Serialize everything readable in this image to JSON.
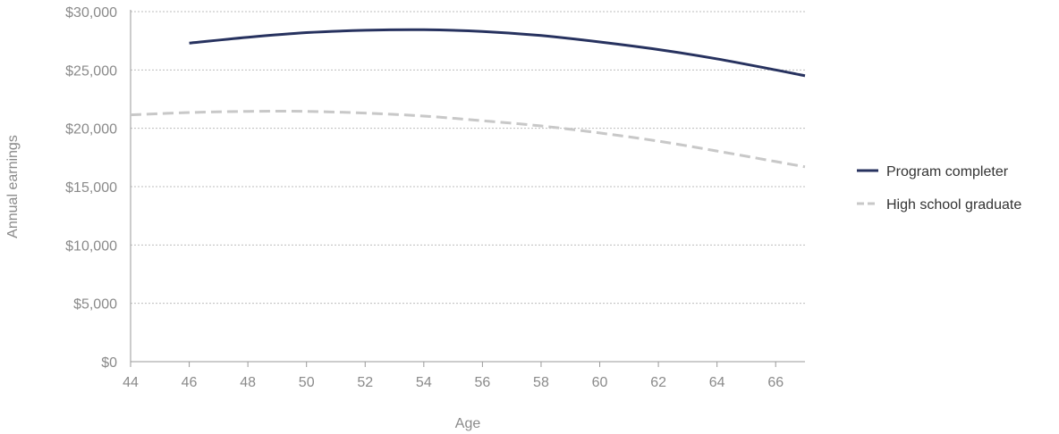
{
  "chart_data": {
    "type": "line",
    "xlabel": "Age",
    "ylabel": "Annual earnings",
    "xlim": [
      44,
      67
    ],
    "ylim": [
      0,
      30000
    ],
    "x_ticks": [
      44,
      46,
      48,
      50,
      52,
      54,
      56,
      58,
      60,
      62,
      64,
      66
    ],
    "x_tick_labels": [
      "44",
      "46",
      "48",
      "50",
      "52",
      "54",
      "56",
      "58",
      "60",
      "62",
      "64",
      "66"
    ],
    "y_ticks": [
      0,
      5000,
      10000,
      15000,
      20000,
      25000,
      30000
    ],
    "y_tick_labels": [
      "$0",
      "$5,000",
      "$10,000",
      "$15,000",
      "$20,000",
      "$25,000",
      "$30,000"
    ],
    "grid": "horizontal",
    "legend_position": "right",
    "series": [
      {
        "name": "Program completer",
        "color": "#27325f",
        "style": "solid",
        "x": [
          46,
          48,
          50,
          52,
          54,
          56,
          58,
          60,
          62,
          64,
          66,
          67
        ],
        "y": [
          27300,
          27800,
          28200,
          28400,
          28450,
          28300,
          27950,
          27400,
          26750,
          25950,
          25000,
          24500
        ]
      },
      {
        "name": "High school graduate",
        "color": "#c8c8c8",
        "style": "dashed",
        "x": [
          44,
          46,
          48,
          50,
          52,
          54,
          56,
          58,
          60,
          62,
          64,
          66,
          67
        ],
        "y": [
          21150,
          21350,
          21450,
          21450,
          21300,
          21050,
          20650,
          20200,
          19600,
          18900,
          18050,
          17150,
          16700
        ]
      }
    ]
  }
}
